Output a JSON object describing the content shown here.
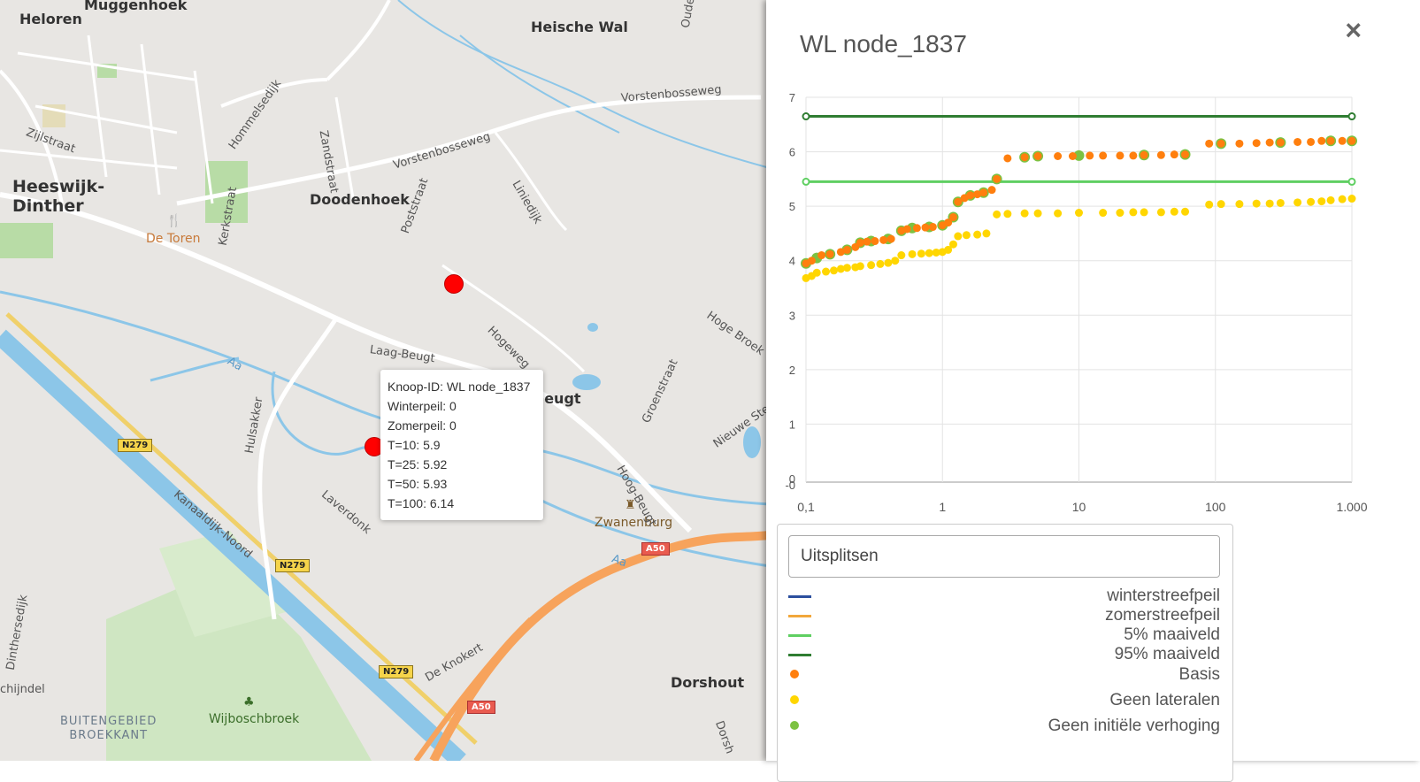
{
  "map": {
    "places": [
      {
        "id": "heloren",
        "text": "Heloren"
      },
      {
        "id": "muggenhoek",
        "text": "Muggenhoek"
      },
      {
        "id": "heische-wal",
        "text": "Heische Wal"
      },
      {
        "id": "heeswijk",
        "text": "Heeswijk-\nDinther"
      },
      {
        "id": "doodenhoek",
        "text": "Doodenhoek"
      },
      {
        "id": "beugt",
        "text": "Beugt"
      },
      {
        "id": "dorshout",
        "text": "Dorshout"
      },
      {
        "id": "zwanenburg",
        "text": "Zwanenburg"
      },
      {
        "id": "wijboschbroek",
        "text": "Wijboschbroek"
      },
      {
        "id": "de-toren",
        "text": "De Toren"
      },
      {
        "id": "buitengebied",
        "text": "BUITENGEBIED\nBROEKKANT"
      }
    ],
    "streets": {
      "zijlstraat": "Zijlstraat",
      "hommelsedijk": "Hommelsedijk",
      "zandstraat": "Zandstraat",
      "vorstenbosseweg1": "Vorstenbosseweg",
      "vorstenbosseweg2": "Vorstenbosseweg",
      "oude_beer": "Oude Beer",
      "liniedijk": "Liniedijk",
      "poststraat": "Poststraat",
      "kerkstraat": "Kerkstraat",
      "hogeweg": "Hogeweg",
      "laag_beugt": "Laag-Beugt",
      "hoge_broek": "Hoge Broek",
      "groenstraat": "Groenstraat",
      "nieuwe_ste": "Nieuwe Ste",
      "hulsakker": "Hulsakker",
      "laverdonk": "Laverdonk",
      "hoog_beugt": "Hoog-Beugt",
      "kanaaldijk": "Kanaaldijk-Noord",
      "aa1": "Aa",
      "aa2": "Aa",
      "de_knokert": "De Knokert",
      "dinthersedijk": "Dinthersedijk",
      "schijndel": "chijndel",
      "dorshout_road": "Dorsh"
    },
    "shields": {
      "n279a": "N279",
      "n279b": "N279",
      "n279c": "N279",
      "a50a": "A50",
      "a50b": "A50"
    },
    "tooltip": {
      "lines": [
        "Knoop-ID: WL node_1837",
        "Winterpeil: 0",
        "Zomerpeil: 0",
        "T=10: 5.9",
        "T=25: 5.92",
        "T=50: 5.93",
        "T=100: 6.14"
      ]
    }
  },
  "panel": {
    "title": "WL node_1837",
    "close_icon": "×",
    "split_input_value": "Uitsplitsen",
    "legend": [
      {
        "label": "winterstreefpeil",
        "type": "line",
        "color": "#2b4f9e"
      },
      {
        "label": "zomerstreefpeil",
        "type": "line",
        "color": "#f2a73b"
      },
      {
        "label": "5% maaiveld",
        "type": "line",
        "color": "#5fcf62"
      },
      {
        "label": "95% maaiveld",
        "type": "line",
        "color": "#2f7d32"
      },
      {
        "label": "Basis",
        "type": "dot",
        "color": "#ff7f0e"
      },
      {
        "label": "Geen lateralen",
        "type": "dot",
        "color": "#ffd600"
      },
      {
        "label": "Geen initiële verhoging",
        "type": "dot",
        "color": "#7cc242"
      }
    ]
  },
  "chart_data": {
    "type": "scatter",
    "x_scale": "log",
    "xlim": [
      0.1,
      1000
    ],
    "ylim": [
      -0.2,
      7
    ],
    "x_ticks": [
      "0,1",
      "1",
      "10",
      "100",
      "1.000"
    ],
    "y_ticks": [
      "-0",
      "0",
      "1",
      "2",
      "3",
      "4",
      "5",
      "6",
      "7"
    ],
    "grid": true,
    "series": [
      {
        "name": "5% maaiveld",
        "kind": "line",
        "color": "#5fcf62",
        "points": [
          [
            0.1,
            5.45
          ],
          [
            1000,
            5.45
          ]
        ]
      },
      {
        "name": "95% maaiveld",
        "kind": "line",
        "color": "#2f7d32",
        "points": [
          [
            0.1,
            6.65
          ],
          [
            1000,
            6.65
          ]
        ]
      },
      {
        "name": "Geen initiële verhoging",
        "kind": "dots",
        "color": "#7cc242",
        "points": [
          [
            0.1,
            3.95
          ],
          [
            0.12,
            4.05
          ],
          [
            0.15,
            4.12
          ],
          [
            0.2,
            4.2
          ],
          [
            0.25,
            4.33
          ],
          [
            0.3,
            4.36
          ],
          [
            0.4,
            4.4
          ],
          [
            0.5,
            4.55
          ],
          [
            0.6,
            4.6
          ],
          [
            0.8,
            4.62
          ],
          [
            1.0,
            4.65
          ],
          [
            1.2,
            4.8
          ],
          [
            1.3,
            5.08
          ],
          [
            1.6,
            5.2
          ],
          [
            2.0,
            5.25
          ],
          [
            2.5,
            5.5
          ],
          [
            4,
            5.9
          ],
          [
            5,
            5.92
          ],
          [
            10,
            5.93
          ],
          [
            30,
            5.94
          ],
          [
            60,
            5.95
          ],
          [
            110,
            6.15
          ],
          [
            300,
            6.17
          ],
          [
            700,
            6.2
          ],
          [
            1000,
            6.2
          ]
        ]
      },
      {
        "name": "Basis",
        "kind": "dots",
        "color": "#ff7f0e",
        "points": [
          [
            0.1,
            3.95
          ],
          [
            0.11,
            4.0
          ],
          [
            0.13,
            4.1
          ],
          [
            0.15,
            4.12
          ],
          [
            0.18,
            4.16
          ],
          [
            0.2,
            4.2
          ],
          [
            0.23,
            4.25
          ],
          [
            0.25,
            4.33
          ],
          [
            0.28,
            4.35
          ],
          [
            0.32,
            4.36
          ],
          [
            0.37,
            4.38
          ],
          [
            0.42,
            4.4
          ],
          [
            0.5,
            4.55
          ],
          [
            0.55,
            4.58
          ],
          [
            0.65,
            4.6
          ],
          [
            0.75,
            4.61
          ],
          [
            0.85,
            4.62
          ],
          [
            1.0,
            4.65
          ],
          [
            1.1,
            4.7
          ],
          [
            1.2,
            4.8
          ],
          [
            1.3,
            5.08
          ],
          [
            1.45,
            5.15
          ],
          [
            1.6,
            5.2
          ],
          [
            1.8,
            5.22
          ],
          [
            2.0,
            5.25
          ],
          [
            2.3,
            5.3
          ],
          [
            2.5,
            5.5
          ],
          [
            3,
            5.88
          ],
          [
            4,
            5.9
          ],
          [
            5,
            5.92
          ],
          [
            7,
            5.92
          ],
          [
            9,
            5.92
          ],
          [
            12,
            5.93
          ],
          [
            15,
            5.93
          ],
          [
            20,
            5.93
          ],
          [
            25,
            5.93
          ],
          [
            30,
            5.94
          ],
          [
            40,
            5.94
          ],
          [
            50,
            5.95
          ],
          [
            60,
            5.95
          ],
          [
            90,
            6.15
          ],
          [
            110,
            6.15
          ],
          [
            150,
            6.15
          ],
          [
            200,
            6.16
          ],
          [
            250,
            6.17
          ],
          [
            300,
            6.17
          ],
          [
            400,
            6.18
          ],
          [
            500,
            6.18
          ],
          [
            600,
            6.2
          ],
          [
            700,
            6.2
          ],
          [
            850,
            6.2
          ],
          [
            1000,
            6.2
          ]
        ]
      },
      {
        "name": "Geen lateralen",
        "kind": "dots",
        "color": "#ffd600",
        "points": [
          [
            0.1,
            3.68
          ],
          [
            0.11,
            3.72
          ],
          [
            0.12,
            3.78
          ],
          [
            0.14,
            3.8
          ],
          [
            0.16,
            3.82
          ],
          [
            0.18,
            3.85
          ],
          [
            0.2,
            3.87
          ],
          [
            0.23,
            3.88
          ],
          [
            0.25,
            3.9
          ],
          [
            0.3,
            3.92
          ],
          [
            0.35,
            3.94
          ],
          [
            0.4,
            3.96
          ],
          [
            0.45,
            4.0
          ],
          [
            0.5,
            4.1
          ],
          [
            0.6,
            4.12
          ],
          [
            0.7,
            4.13
          ],
          [
            0.8,
            4.14
          ],
          [
            0.9,
            4.15
          ],
          [
            1.0,
            4.16
          ],
          [
            1.1,
            4.2
          ],
          [
            1.2,
            4.3
          ],
          [
            1.3,
            4.45
          ],
          [
            1.5,
            4.47
          ],
          [
            1.8,
            4.48
          ],
          [
            2.1,
            4.5
          ],
          [
            2.5,
            4.85
          ],
          [
            3,
            4.86
          ],
          [
            4,
            4.87
          ],
          [
            5,
            4.87
          ],
          [
            7,
            4.87
          ],
          [
            10,
            4.88
          ],
          [
            15,
            4.88
          ],
          [
            20,
            4.88
          ],
          [
            25,
            4.89
          ],
          [
            30,
            4.89
          ],
          [
            40,
            4.89
          ],
          [
            50,
            4.9
          ],
          [
            60,
            4.9
          ],
          [
            90,
            5.03
          ],
          [
            110,
            5.04
          ],
          [
            150,
            5.04
          ],
          [
            200,
            5.05
          ],
          [
            250,
            5.05
          ],
          [
            300,
            5.06
          ],
          [
            400,
            5.07
          ],
          [
            500,
            5.08
          ],
          [
            600,
            5.09
          ],
          [
            700,
            5.11
          ],
          [
            850,
            5.13
          ],
          [
            1000,
            5.14
          ]
        ]
      }
    ]
  }
}
